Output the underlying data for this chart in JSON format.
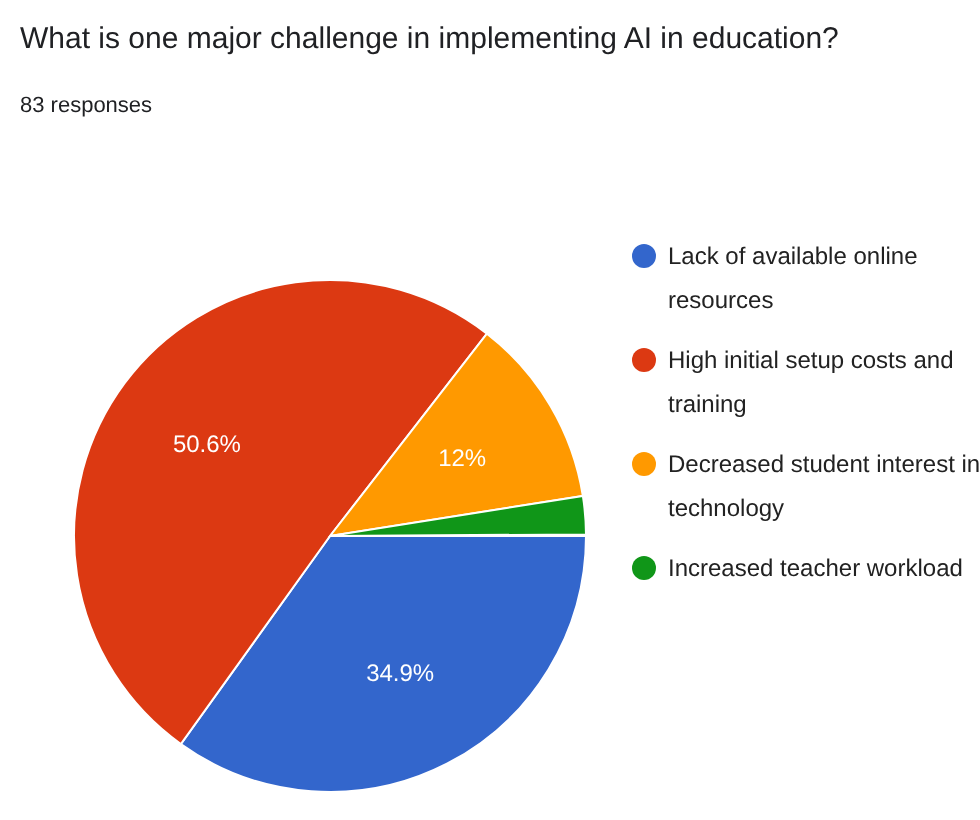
{
  "chart_data": {
    "type": "pie",
    "title": "What is one major challenge in implementing AI in education?",
    "subtitle": "83 responses",
    "categories": [
      "Lack of available online resources",
      "High initial setup costs and training",
      "Decreased student interest in technology",
      "Increased teacher workload"
    ],
    "values": [
      34.9,
      50.6,
      12,
      2.4
    ],
    "colors": [
      "#3366cc",
      "#dc3912",
      "#ff9900",
      "#109618"
    ],
    "value_labels": [
      "34.9%",
      "50.6%",
      "12%",
      null
    ],
    "legend": "right"
  }
}
